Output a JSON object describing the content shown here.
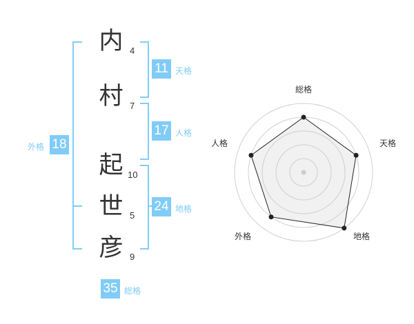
{
  "name": {
    "chars": [
      {
        "char": "内",
        "strokes": "4"
      },
      {
        "char": "村",
        "strokes": "7"
      },
      {
        "char": "起",
        "strokes": "10"
      },
      {
        "char": "世",
        "strokes": "5"
      },
      {
        "char": "彦",
        "strokes": "9"
      }
    ]
  },
  "kaku": {
    "tenkaku": {
      "label": "天格",
      "value": "11"
    },
    "jinkaku": {
      "label": "人格",
      "value": "17"
    },
    "chikaku": {
      "label": "地格",
      "value": "24"
    },
    "gaikaku": {
      "label": "外格",
      "value": "18"
    },
    "soukaku": {
      "label": "総格",
      "value": "35"
    }
  },
  "colors": {
    "accent": "#80ccf7",
    "text": "#333333"
  },
  "chart_data": {
    "type": "radar",
    "axes": [
      "総格",
      "天格",
      "地格",
      "外格",
      "人格"
    ],
    "values": [
      4,
      4,
      5,
      4,
      4
    ],
    "range": [
      0,
      5
    ],
    "rings": 5
  }
}
